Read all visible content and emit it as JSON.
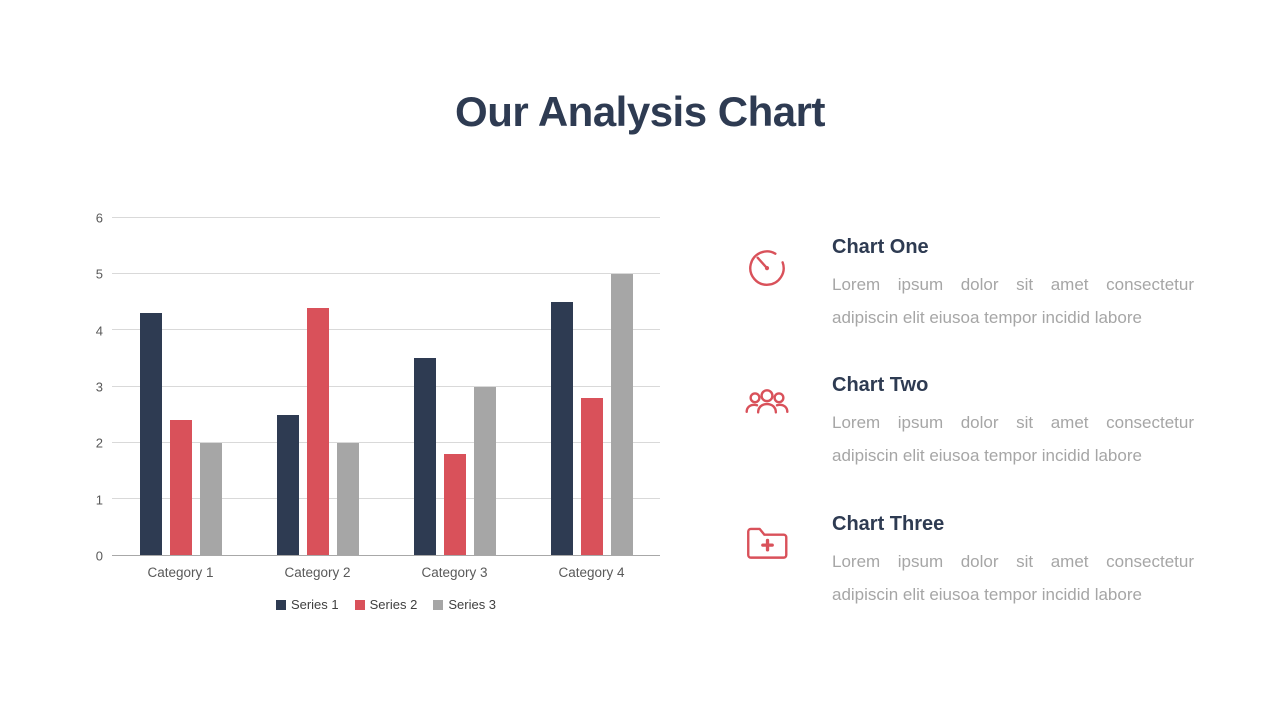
{
  "slide": {
    "title": "Our Analysis Chart"
  },
  "chart_data": {
    "type": "bar",
    "title": "",
    "xlabel": "",
    "ylabel": "",
    "categories": [
      "Category 1",
      "Category 2",
      "Category 3",
      "Category 4"
    ],
    "series": [
      {
        "name": "Series 1",
        "color": "#2e3b52",
        "values": [
          4.3,
          2.5,
          3.5,
          4.5
        ]
      },
      {
        "name": "Series 2",
        "color": "#d9515a",
        "values": [
          2.4,
          4.4,
          1.8,
          2.8
        ]
      },
      {
        "name": "Series 3",
        "color": "#a6a6a6",
        "values": [
          2.0,
          2.0,
          3.0,
          5.0
        ]
      }
    ],
    "ylim": [
      0,
      6
    ],
    "yticks": [
      0,
      1,
      2,
      3,
      4,
      5,
      6
    ],
    "grid": true,
    "legend_position": "bottom"
  },
  "features": [
    {
      "icon": "gauge-icon",
      "title": "Chart One",
      "body": "Lorem ipsum dolor sit amet consectetur adipiscin elit eiusoa tempor incidid labore"
    },
    {
      "icon": "users-icon",
      "title": "Chart Two",
      "body": "Lorem ipsum dolor sit amet consectetur adipiscin elit eiusoa tempor incidid labore"
    },
    {
      "icon": "folder-plus-icon",
      "title": "Chart Three",
      "body": "Lorem ipsum dolor sit amet consectetur adipiscin elit eiusoa tempor incidid labore"
    }
  ],
  "colors": {
    "heading": "#2e3b52",
    "accent_red": "#d9515a",
    "bar_gray": "#a6a6a6",
    "body_text": "#a6a6a6",
    "gridline": "#d9d9d9"
  }
}
